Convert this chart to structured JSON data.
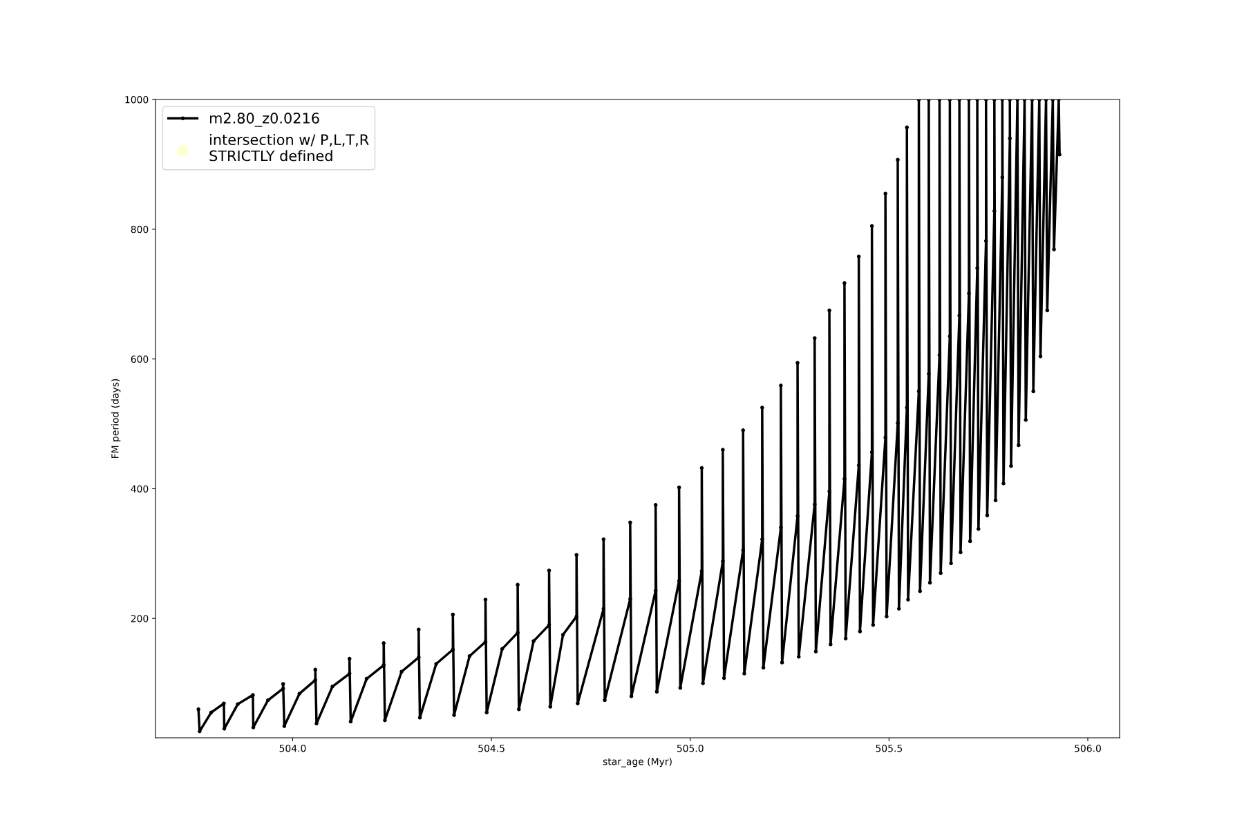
{
  "chart_data": {
    "type": "line",
    "xlabel": "star_age (Myr)",
    "ylabel": "FM period (days)",
    "xlim": [
      503.655,
      506.08
    ],
    "ylim": [
      16,
      1000
    ],
    "xticks": [
      {
        "value": 504,
        "label": "504.0"
      },
      {
        "value": 504.5,
        "label": "504.5"
      },
      {
        "value": 505,
        "label": "505.0"
      },
      {
        "value": 505.5,
        "label": "505.5"
      },
      {
        "value": 506,
        "label": "506.0"
      }
    ],
    "yticks": [
      200,
      400,
      600,
      800,
      1000
    ],
    "grid": false,
    "legend": "top left",
    "marker": "circle",
    "line_style": "solid",
    "series": [
      {
        "name": "m2.80_z0.0216",
        "color": "#000000",
        "x": [
          503.763,
          503.766,
          503.795,
          503.827,
          503.828,
          503.862,
          503.9,
          503.901,
          503.938,
          503.976,
          503.976,
          503.979,
          504.017,
          504.057,
          504.057,
          504.06,
          504.1,
          504.143,
          504.143,
          504.146,
          504.186,
          504.229,
          504.229,
          504.232,
          504.274,
          504.317,
          504.317,
          504.32,
          504.361,
          504.403,
          504.403,
          504.406,
          504.445,
          504.485,
          504.485,
          504.488,
          504.527,
          504.566,
          504.566,
          504.569,
          504.606,
          504.645,
          504.645,
          504.648,
          504.68,
          504.714,
          504.714,
          504.717,
          504.782,
          504.782,
          504.785,
          504.849,
          504.849,
          504.852,
          504.913,
          504.913,
          504.916,
          504.972,
          504.972,
          504.975,
          505.029,
          505.029,
          505.032,
          505.082,
          505.082,
          505.085,
          505.133,
          505.133,
          505.136,
          505.181,
          505.181,
          505.184,
          505.228,
          505.228,
          505.231,
          505.27,
          505.27,
          505.273,
          505.313,
          505.313,
          505.316,
          505.35,
          505.35,
          505.353,
          505.388,
          505.388,
          505.391,
          505.424,
          505.424,
          505.427,
          505.457,
          505.457,
          505.46,
          505.491,
          505.491,
          505.494,
          505.522,
          505.522,
          505.525,
          505.545,
          505.545,
          505.548,
          505.575,
          505.575,
          505.578,
          505.6,
          505.6,
          505.603,
          505.627,
          505.627,
          505.63,
          505.653,
          505.653,
          505.656,
          505.677,
          505.677,
          505.68,
          505.701,
          505.701,
          505.704,
          505.722,
          505.722,
          505.725,
          505.744,
          505.744,
          505.747,
          505.765,
          505.765,
          505.768,
          505.785,
          505.785,
          505.788,
          505.804,
          505.804,
          505.807,
          505.823,
          505.826,
          505.841,
          505.844,
          505.86,
          505.863,
          505.878,
          505.881,
          505.895,
          505.898,
          505.912,
          505.915,
          505.927,
          505.929
        ],
        "values": [
          60,
          26,
          55,
          69,
          30,
          68,
          82,
          32,
          74,
          92,
          99,
          34,
          84,
          105,
          121,
          38,
          95,
          115,
          138,
          41,
          107,
          128,
          162,
          43,
          118,
          140,
          183,
          47,
          130,
          152,
          206,
          51,
          142,
          164,
          229,
          55,
          153,
          178,
          252,
          60,
          165,
          190,
          274,
          64,
          175,
          203,
          298,
          69,
          215,
          322,
          74,
          230,
          348,
          80,
          243,
          375,
          87,
          258,
          402,
          93,
          273,
          432,
          100,
          288,
          460,
          108,
          305,
          490,
          115,
          322,
          525,
          124,
          340,
          559,
          132,
          358,
          594,
          141,
          376,
          632,
          149,
          396,
          675,
          160,
          415,
          717,
          169,
          436,
          758,
          180,
          456,
          805,
          190,
          479,
          855,
          203,
          501,
          907,
          215,
          525,
          957,
          229,
          550,
          1000,
          242,
          577,
          1000,
          255,
          606,
          1000,
          270,
          635,
          1000,
          285,
          667,
          1000,
          302,
          701,
          1000,
          319,
          740,
          1000,
          338,
          782,
          1000,
          359,
          828,
          1000,
          382,
          880,
          1000,
          408,
          940,
          1000,
          435,
          1000,
          467,
          1000,
          506,
          1000,
          550,
          1000,
          604,
          1000,
          675,
          1000,
          769,
          1000,
          915
        ]
      },
      {
        "name": "intersection w/ P,L,T,R\nSTRICTLY defined",
        "color": "#ffffb3",
        "type": "scatter"
      }
    ]
  }
}
